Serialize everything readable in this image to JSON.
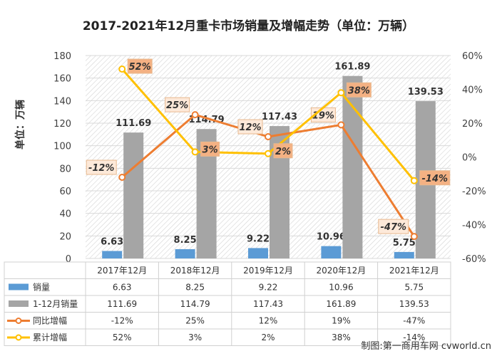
{
  "chart_data": {
    "type": "bar",
    "title": "2017-2021年12月重卡市场销量及增幅走势（单位：万辆）",
    "ylabel": "单位：万辆",
    "categories": [
      "2017年12月",
      "2018年12月",
      "2019年12月",
      "2020年12月",
      "2021年12月"
    ],
    "ylim_left": [
      0,
      180
    ],
    "yticks_left": [
      "0",
      "20",
      "40",
      "60",
      "80",
      "100",
      "120",
      "140",
      "160",
      "180"
    ],
    "ylim_right": [
      -60,
      60
    ],
    "yticks_right": [
      "-60%",
      "-40%",
      "-20%",
      "0%",
      "20%",
      "40%",
      "60%"
    ],
    "series": [
      {
        "name": "销量",
        "kind": "bar",
        "axis": "left",
        "color": "#5b9bd5",
        "values": [
          6.63,
          8.25,
          9.22,
          10.96,
          5.75
        ],
        "labels": [
          "6.63",
          "8.25",
          "9.22",
          "10.96",
          "5.75"
        ]
      },
      {
        "name": "1-12月销量",
        "kind": "bar",
        "axis": "left",
        "color": "#a5a5a5",
        "values": [
          111.69,
          114.79,
          117.43,
          161.89,
          139.53
        ],
        "labels": [
          "111.69",
          "114.79",
          "117.43",
          "161.89",
          "139.53"
        ]
      },
      {
        "name": "同比增幅",
        "kind": "line",
        "axis": "right",
        "color": "#ed7d31",
        "values": [
          -12,
          25,
          12,
          19,
          -47
        ],
        "labels": [
          "-12%",
          "25%",
          "12%",
          "19%",
          "-47%"
        ]
      },
      {
        "name": "累计增幅",
        "kind": "line",
        "axis": "right",
        "color": "#ffc000",
        "values": [
          52,
          3,
          2,
          38,
          -14
        ],
        "labels": [
          "52%",
          "3%",
          "2%",
          "38%",
          "-14%"
        ]
      }
    ],
    "grid": true,
    "legend": "bottom-table"
  },
  "source": "制图:第一商用车网 cvworld.cn"
}
